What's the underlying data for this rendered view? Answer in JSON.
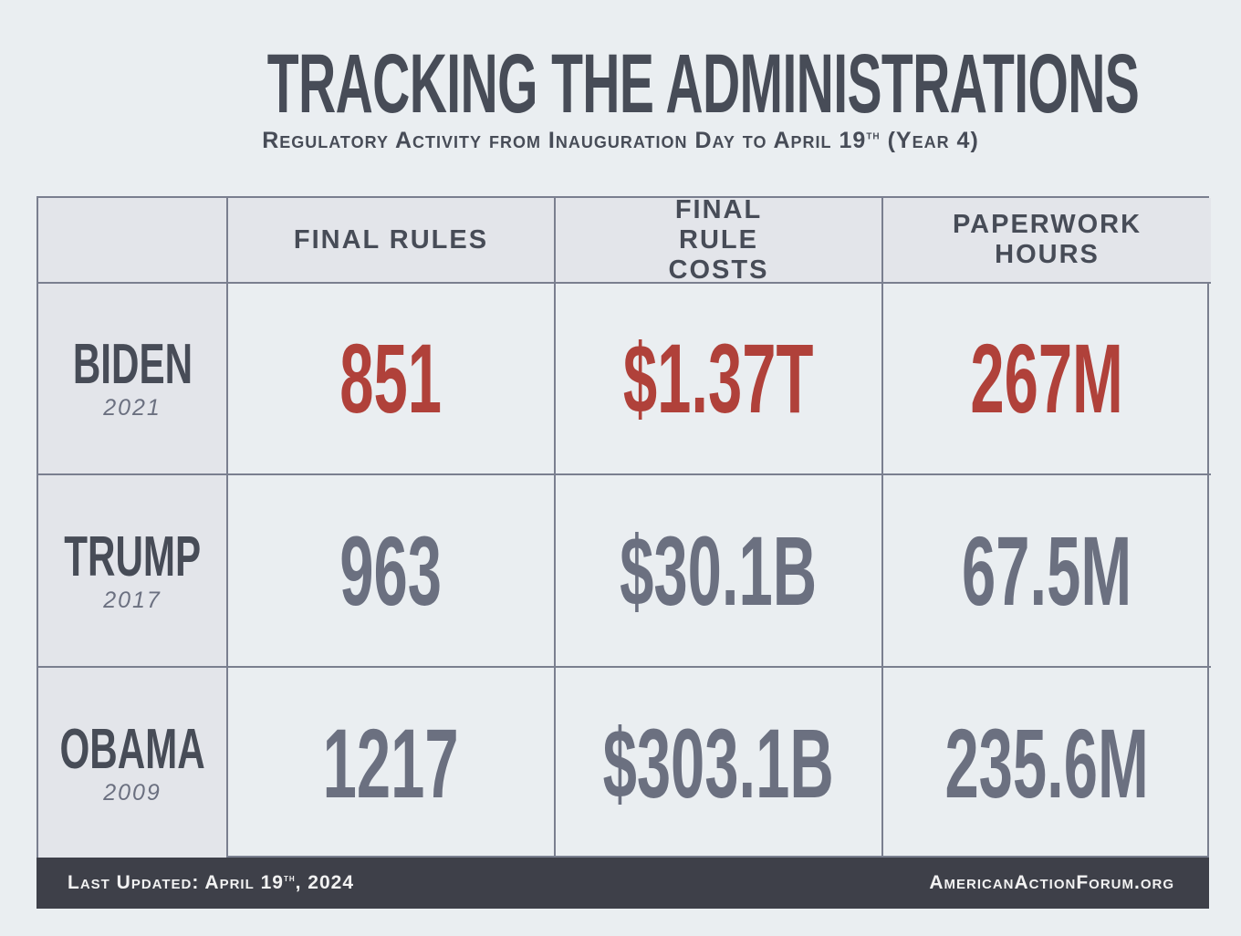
{
  "title": "TRACKING THE ADMINISTRATIONS",
  "subtitle": {
    "text": "Regulatory Activity from Inauguration Day to April 19",
    "sup": "th",
    "suffix": " (Year 4)"
  },
  "chart_data": {
    "type": "table",
    "columns": [
      "FINAL RULES",
      "FINAL RULE COSTS",
      "PAPERWORK HOURS"
    ],
    "rows": [
      {
        "name": "BIDEN",
        "year": "2021",
        "values": [
          "851",
          "$1.37T",
          "267M"
        ],
        "highlight": true
      },
      {
        "name": "TRUMP",
        "year": "2017",
        "values": [
          "963",
          "$30.1B",
          "67.5M"
        ],
        "highlight": false
      },
      {
        "name": "OBAMA",
        "year": "2009",
        "values": [
          "1217",
          "$303.1B",
          "235.6M"
        ],
        "highlight": false
      }
    ]
  },
  "footer": {
    "updated_prefix": "Last Updated: April 19",
    "updated_sup": "th",
    "updated_suffix": ", 2024",
    "site": "AmericanActionForum.org"
  },
  "colors": {
    "highlight": "#b0413a",
    "normal": "#6b7080",
    "dark": "#474c57",
    "footer_bg": "#3e4049"
  }
}
